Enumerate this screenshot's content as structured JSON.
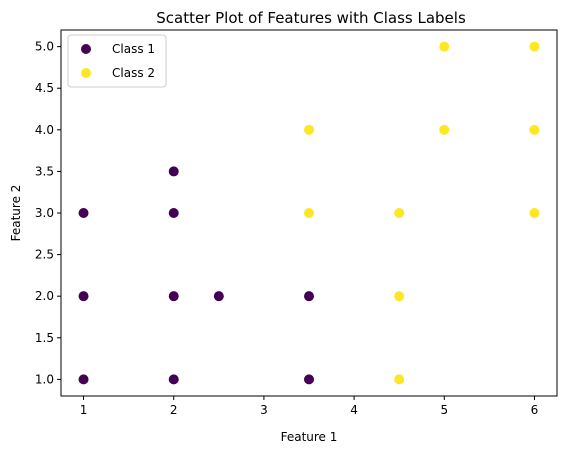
{
  "chart_data": {
    "type": "scatter",
    "title": "Scatter Plot of Features with Class Labels",
    "xlabel": "Feature 1",
    "ylabel": "Feature 2",
    "xlim": [
      0.75,
      6.25
    ],
    "ylim": [
      0.8,
      5.2
    ],
    "x_ticks": [
      1,
      2,
      3,
      4,
      5,
      6
    ],
    "x_tick_labels": [
      "1",
      "2",
      "3",
      "4",
      "5",
      "6"
    ],
    "y_ticks": [
      1.0,
      1.5,
      2.0,
      2.5,
      3.0,
      3.5,
      4.0,
      4.5,
      5.0
    ],
    "y_tick_labels": [
      "1.0",
      "1.5",
      "2.0",
      "2.5",
      "3.0",
      "3.5",
      "4.0",
      "4.5",
      "5.0"
    ],
    "grid": false,
    "legend_position": "top-left",
    "series": [
      {
        "name": "Class 1",
        "color": "#440154",
        "points": [
          [
            1,
            1
          ],
          [
            1,
            2
          ],
          [
            1,
            3
          ],
          [
            2,
            1
          ],
          [
            2,
            2
          ],
          [
            2,
            3
          ],
          [
            2,
            3.5
          ],
          [
            2.5,
            2
          ],
          [
            3.5,
            1
          ],
          [
            3.5,
            2
          ]
        ]
      },
      {
        "name": "Class 2",
        "color": "#fde725",
        "points": [
          [
            3.5,
            3
          ],
          [
            3.5,
            4
          ],
          [
            4.5,
            1
          ],
          [
            4.5,
            2
          ],
          [
            4.5,
            3
          ],
          [
            5,
            4
          ],
          [
            5,
            5
          ],
          [
            6,
            3
          ],
          [
            6,
            4
          ],
          [
            6,
            5
          ]
        ]
      }
    ]
  }
}
